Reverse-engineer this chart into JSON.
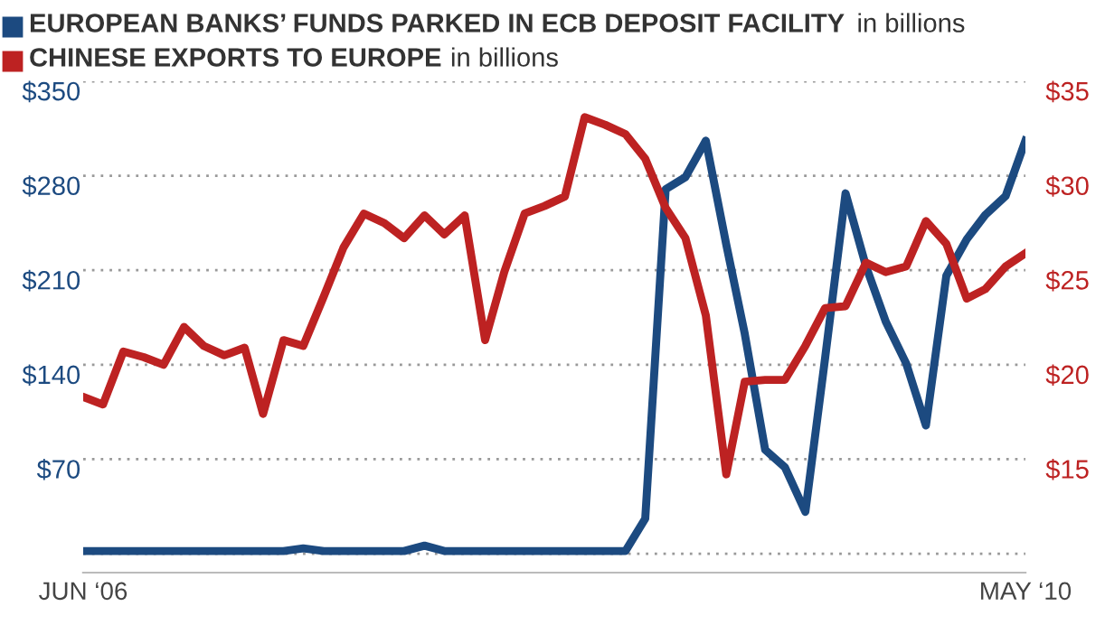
{
  "chart_data": {
    "type": "line",
    "x": [
      "2006-06",
      "2006-07",
      "2006-08",
      "2006-09",
      "2006-10",
      "2006-11",
      "2006-12",
      "2007-01",
      "2007-02",
      "2007-03",
      "2007-04",
      "2007-05",
      "2007-06",
      "2007-07",
      "2007-08",
      "2007-09",
      "2007-10",
      "2007-11",
      "2007-12",
      "2008-01",
      "2008-02",
      "2008-03",
      "2008-04",
      "2008-05",
      "2008-06",
      "2008-07",
      "2008-08",
      "2008-09",
      "2008-10",
      "2008-11",
      "2008-12",
      "2009-01",
      "2009-02",
      "2009-03",
      "2009-04",
      "2009-05",
      "2009-06",
      "2009-07",
      "2009-08",
      "2009-09",
      "2009-10",
      "2009-11",
      "2009-12",
      "2010-01",
      "2010-02",
      "2010-03",
      "2010-04",
      "2010-05"
    ],
    "series": [
      {
        "name": "EUROPEAN BANKS’ FUNDS PARKED IN ECB DEPOSIT FACILITY",
        "color": "#1c4a80",
        "values": [
          2,
          2,
          2,
          2,
          2,
          2,
          2,
          2,
          2,
          2,
          2,
          4,
          2,
          2,
          2,
          2,
          2,
          6,
          2,
          2,
          2,
          2,
          2,
          2,
          2,
          2,
          2,
          2,
          26,
          270,
          279,
          306,
          229,
          163,
          77,
          64,
          31,
          145,
          267,
          213,
          172,
          141,
          95,
          206,
          233,
          251,
          265,
          306
        ]
      },
      {
        "name": "CHINESE EXPORTS TO EUROPE",
        "color": "#bd2222",
        "axis": "y2",
        "values": [
          18.3,
          17.9,
          20.7,
          20.4,
          20.0,
          22.0,
          21.0,
          20.5,
          20.9,
          17.4,
          21.3,
          21.0,
          23.6,
          26.2,
          28.0,
          27.5,
          26.7,
          27.9,
          26.9,
          27.9,
          21.3,
          24.9,
          28.0,
          28.4,
          28.9,
          33.1,
          32.7,
          32.2,
          30.9,
          28.3,
          26.7,
          22.6,
          14.2,
          19.1,
          19.2,
          19.2,
          21.0,
          23.0,
          23.1,
          25.4,
          24.9,
          25.2,
          27.6,
          26.4,
          23.5,
          24.0,
          25.2,
          25.9
        ]
      }
    ],
    "annotations": [
      "in billions",
      "in billions"
    ],
    "xlim": [
      "2006-06",
      "2010-05"
    ],
    "xticks": [
      {
        "value": "2006-06",
        "label": "JUN ‘06"
      },
      {
        "value": "2010-05",
        "label": "MAY ‘10"
      }
    ],
    "ylim": [
      -14,
      350
    ],
    "yticks": [
      {
        "value": 0,
        "label": null
      },
      {
        "value": 70,
        "label": "$70"
      },
      {
        "value": 140,
        "label": "$140"
      },
      {
        "value": 210,
        "label": "$210"
      },
      {
        "value": 280,
        "label": "$280"
      },
      {
        "value": 350,
        "label": "$350"
      }
    ],
    "y2lim": [
      9,
      35
    ],
    "y2ticks": [
      {
        "value": 15,
        "label": "$15"
      },
      {
        "value": 20,
        "label": "$20"
      },
      {
        "value": 25,
        "label": "$25"
      },
      {
        "value": 30,
        "label": "$30"
      },
      {
        "value": 35,
        "label": "$35"
      }
    ],
    "grid": "y",
    "legend": "top",
    "marker": "none",
    "line_style": "solid"
  }
}
